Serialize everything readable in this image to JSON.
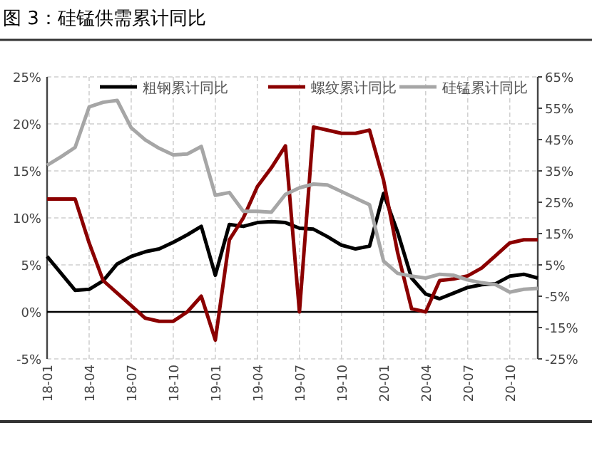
{
  "chart_data": {
    "type": "line",
    "title": "图 3：硅锰供需累计同比",
    "categories": [
      "18-01",
      null,
      null,
      "18-04",
      null,
      null,
      "18-07",
      null,
      null,
      "18-10",
      null,
      null,
      "19-01",
      null,
      null,
      "19-04",
      null,
      null,
      "19-07",
      null,
      null,
      "19-10",
      null,
      null,
      "20-01",
      null,
      null,
      "20-04",
      null,
      null,
      "20-07",
      null,
      null,
      "20-10",
      null,
      null
    ],
    "series": [
      {
        "name": "粗钢累计同比",
        "color": "#000000",
        "values": [
          5.9,
          4.1,
          2.3,
          2.4,
          3.3,
          5.1,
          5.9,
          6.4,
          6.7,
          7.4,
          8.2,
          9.1,
          3.9,
          9.3,
          9.1,
          9.5,
          9.6,
          9.5,
          8.9,
          8.8,
          8.0,
          7.1,
          6.7,
          7.0,
          12.6,
          8.5,
          3.6,
          1.9,
          1.4,
          2.0,
          2.6,
          2.9,
          3.0,
          3.8,
          4.0,
          3.6
        ]
      },
      {
        "name": "螺纹累计同比",
        "color": "#8b0000",
        "axis": "y2",
        "values": [
          26,
          26,
          26,
          12,
          0,
          -4,
          -8,
          -12,
          -13,
          -13,
          -10,
          -5,
          -19,
          13,
          20,
          30,
          36,
          43,
          -10,
          49,
          48,
          47,
          47,
          48,
          32,
          9,
          -9,
          -10,
          0,
          0.5,
          1.5,
          4,
          8,
          12,
          13,
          13
        ]
      },
      {
        "name": "硅锰累计同比",
        "color": "#a6a6a6",
        "values": [
          15.6,
          16.5,
          17.5,
          21.8,
          22.3,
          22.5,
          19.6,
          18.3,
          17.4,
          16.7,
          16.8,
          17.6,
          12.4,
          12.7,
          10.7,
          10.7,
          10.6,
          12.5,
          13.2,
          13.6,
          13.5,
          12.8,
          12.1,
          11.4,
          5.4,
          4.1,
          3.8,
          3.6,
          4.0,
          3.9,
          3.4,
          3.1,
          2.9,
          2.1,
          2.4,
          2.5
        ]
      }
    ],
    "ylim": [
      -5,
      25
    ],
    "yticks": [
      {
        "value": -5,
        "label": "-5%"
      },
      {
        "value": 0,
        "label": "0%"
      },
      {
        "value": 5,
        "label": "5%"
      },
      {
        "value": 10,
        "label": "10%"
      },
      {
        "value": 15,
        "label": "15%"
      },
      {
        "value": 20,
        "label": "20%"
      },
      {
        "value": 25,
        "label": "25%"
      }
    ],
    "y2lim": [
      -25,
      65
    ],
    "y2ticks": [
      {
        "value": -25,
        "label": "-25%"
      },
      {
        "value": -15,
        "label": "-15%"
      },
      {
        "value": -5,
        "label": "-5%"
      },
      {
        "value": 5,
        "label": "5%"
      },
      {
        "value": 15,
        "label": "15%"
      },
      {
        "value": 25,
        "label": "25%"
      },
      {
        "value": 35,
        "label": "35%"
      },
      {
        "value": 45,
        "label": "45%"
      },
      {
        "value": 55,
        "label": "55%"
      },
      {
        "value": 65,
        "label": "65%"
      }
    ],
    "ref_lines": [
      {
        "axis": "y",
        "value": 0,
        "color": "#000000"
      }
    ],
    "grid": true,
    "legend": "top",
    "marker": "none",
    "line_style": "solid"
  }
}
